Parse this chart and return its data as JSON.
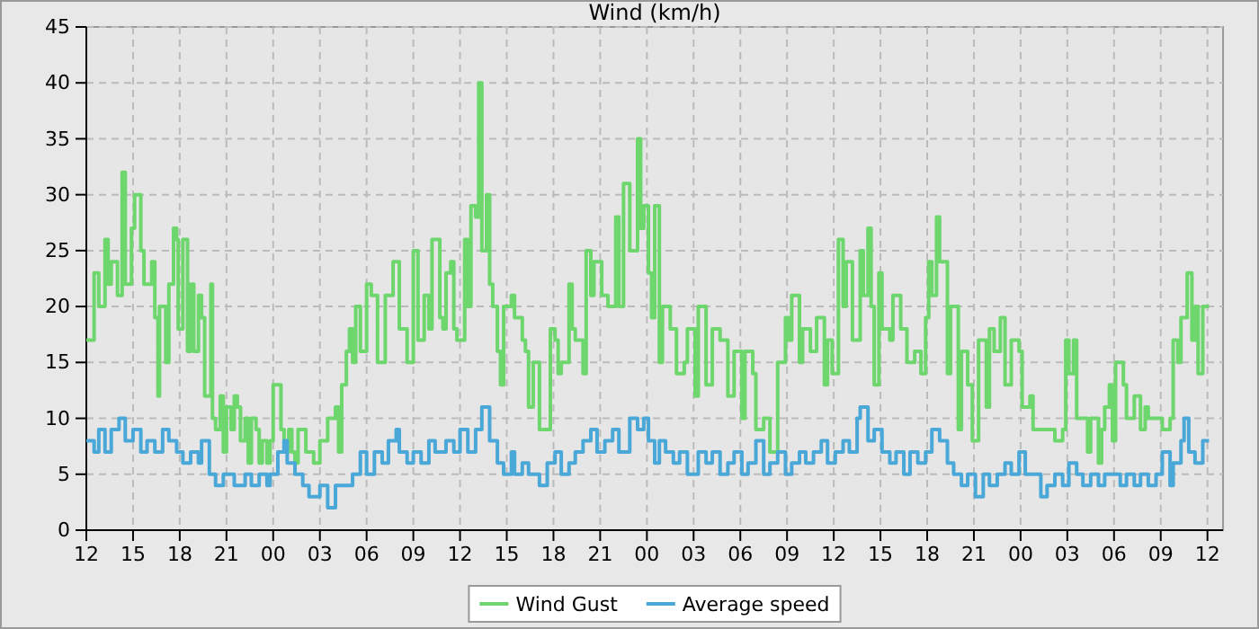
{
  "chart_data": {
    "type": "step",
    "title": "Wind (km/h)",
    "legend": "bottom",
    "grid": true,
    "xlim": [
      12,
      85
    ],
    "ylim": [
      0,
      45
    ],
    "yticks": [
      0,
      5,
      10,
      15,
      20,
      25,
      30,
      35,
      40,
      45
    ],
    "xticks": [
      {
        "value": 12,
        "label": "12"
      },
      {
        "value": 15,
        "label": "15"
      },
      {
        "value": 18,
        "label": "18"
      },
      {
        "value": 21,
        "label": "21"
      },
      {
        "value": 24,
        "label": "00"
      },
      {
        "value": 27,
        "label": "03"
      },
      {
        "value": 30,
        "label": "06"
      },
      {
        "value": 33,
        "label": "09"
      },
      {
        "value": 36,
        "label": "12"
      },
      {
        "value": 39,
        "label": "15"
      },
      {
        "value": 42,
        "label": "18"
      },
      {
        "value": 45,
        "label": "21"
      },
      {
        "value": 48,
        "label": "00"
      },
      {
        "value": 51,
        "label": "03"
      },
      {
        "value": 54,
        "label": "06"
      },
      {
        "value": 57,
        "label": "09"
      },
      {
        "value": 60,
        "label": "12"
      },
      {
        "value": 63,
        "label": "15"
      },
      {
        "value": 66,
        "label": "18"
      },
      {
        "value": 69,
        "label": "21"
      },
      {
        "value": 72,
        "label": "00"
      },
      {
        "value": 75,
        "label": "03"
      },
      {
        "value": 78,
        "label": "06"
      },
      {
        "value": 81,
        "label": "09"
      },
      {
        "value": 84,
        "label": "12"
      }
    ],
    "series": [
      {
        "name": "Wind Gust",
        "color": "#6dd66d",
        "x": [
          12.0,
          12.5,
          12.8,
          13.2,
          13.4,
          13.6,
          14.0,
          14.3,
          14.5,
          14.9,
          15.1,
          15.5,
          15.7,
          16.2,
          16.4,
          16.6,
          16.7,
          17.1,
          17.3,
          17.6,
          17.8,
          17.9,
          18.2,
          18.5,
          18.7,
          18.9,
          19.2,
          19.4,
          19.6,
          20.0,
          20.1,
          20.3,
          20.6,
          20.8,
          21.0,
          21.3,
          21.5,
          21.7,
          21.9,
          22.2,
          22.4,
          22.6,
          22.9,
          23.1,
          23.3,
          23.6,
          23.8,
          24.0,
          24.3,
          24.5,
          24.7,
          25.0,
          25.2,
          25.4,
          25.6,
          26.1,
          26.6,
          27.0,
          27.5,
          28.0,
          28.2,
          28.4,
          28.7,
          28.9,
          29.1,
          29.3,
          29.6,
          30.0,
          30.3,
          30.7,
          31.2,
          31.7,
          32.1,
          32.6,
          33.0,
          33.3,
          33.7,
          34.0,
          34.2,
          34.7,
          34.9,
          35.1,
          35.4,
          35.6,
          35.8,
          36.3,
          36.5,
          36.7,
          37.0,
          37.2,
          37.4,
          37.7,
          37.9,
          38.1,
          38.4,
          38.6,
          38.8,
          39.3,
          39.5,
          40.0,
          40.2,
          40.4,
          40.7,
          41.1,
          41.4,
          41.8,
          42.1,
          42.3,
          42.5,
          43.0,
          43.2,
          43.4,
          43.9,
          44.1,
          44.4,
          44.6,
          45.1,
          45.5,
          46.0,
          46.2,
          46.5,
          46.9,
          47.4,
          47.6,
          47.8,
          48.1,
          48.3,
          48.5,
          48.8,
          49.0,
          49.5,
          49.9,
          50.4,
          50.6,
          51.1,
          51.3,
          51.8,
          52.2,
          52.7,
          53.2,
          53.6,
          54.1,
          54.3,
          54.8,
          55.0,
          55.5,
          55.9,
          56.4,
          56.9,
          57.1,
          57.3,
          57.8,
          58.0,
          58.5,
          58.9,
          59.4,
          59.6,
          59.9,
          60.3,
          60.6,
          60.8,
          61.2,
          61.7,
          61.9,
          62.2,
          62.4,
          62.6,
          62.9,
          63.1,
          63.6,
          63.8,
          64.3,
          64.7,
          65.2,
          65.6,
          65.9,
          66.1,
          66.3,
          66.6,
          66.8,
          67.3,
          67.5,
          68.0,
          68.2,
          68.6,
          68.9,
          69.3,
          69.8,
          70.0,
          70.3,
          70.7,
          71.0,
          71.4,
          71.9,
          72.1,
          72.6,
          72.8,
          73.3,
          73.7,
          74.2,
          74.7,
          74.9,
          75.1,
          75.4,
          75.6,
          76.0,
          76.3,
          76.5,
          77.0,
          77.2,
          77.4,
          77.7,
          77.9,
          78.1,
          78.6,
          78.8,
          79.3,
          79.7,
          80.0,
          80.2,
          80.7,
          81.1,
          81.6,
          81.8,
          82.1,
          82.3,
          82.7,
          83.0,
          83.2,
          83.4,
          83.7,
          84.1
        ],
        "values": [
          17,
          23,
          20,
          26,
          22,
          24,
          21,
          32,
          22,
          27,
          30,
          25,
          22,
          24,
          19,
          12,
          20,
          15,
          22,
          27,
          26,
          18,
          26,
          16,
          22,
          16,
          21,
          19,
          12,
          22,
          10,
          9,
          12,
          7,
          11,
          9,
          12,
          11,
          8,
          10,
          6,
          10,
          9,
          6,
          8,
          6,
          8,
          13,
          13,
          9,
          7,
          9,
          7,
          6,
          9,
          7,
          6,
          8,
          10,
          11,
          7,
          13,
          16,
          18,
          15,
          20,
          16,
          22,
          21,
          15,
          21,
          24,
          18,
          15,
          25,
          17,
          21,
          18,
          26,
          19,
          18,
          23,
          24,
          18,
          17,
          26,
          20,
          29,
          28,
          40,
          25,
          30,
          22,
          20,
          16,
          13,
          20,
          21,
          19,
          17,
          16,
          11,
          15,
          9,
          9,
          18,
          17,
          14,
          15,
          22,
          18,
          17,
          14,
          25,
          21,
          24,
          21,
          20,
          28,
          20,
          31,
          25,
          35,
          27,
          29,
          23,
          19,
          29,
          15,
          20,
          18,
          14,
          15,
          18,
          12,
          20,
          13,
          18,
          17,
          12,
          16,
          10,
          16,
          14,
          9,
          10,
          7,
          15,
          19,
          17,
          21,
          15,
          18,
          16,
          19,
          13,
          17,
          14,
          26,
          20,
          24,
          17,
          25,
          21,
          27,
          20,
          13,
          23,
          18,
          17,
          21,
          18,
          15,
          16,
          14,
          19,
          24,
          21,
          28,
          24,
          14,
          20,
          9,
          16,
          13,
          8,
          17,
          11,
          18,
          16,
          19,
          13,
          17,
          16,
          11,
          12,
          9,
          9,
          9,
          8,
          9,
          17,
          14,
          17,
          10,
          10,
          7,
          10,
          6,
          9,
          11,
          13,
          8,
          15,
          13,
          10,
          12,
          9,
          11,
          10,
          10,
          9,
          10,
          17,
          15,
          19,
          23,
          17,
          20,
          14,
          20,
          20
        ]
      },
      {
        "name": "Average speed",
        "color": "#4aa8d8",
        "x": [
          12.0,
          12.5,
          12.8,
          13.2,
          13.6,
          14.1,
          14.5,
          15.0,
          15.5,
          15.9,
          16.4,
          16.9,
          17.3,
          17.8,
          18.2,
          18.7,
          19.2,
          19.4,
          19.9,
          20.3,
          20.8,
          21.5,
          22.2,
          22.6,
          23.1,
          23.6,
          23.8,
          24.3,
          24.7,
          24.9,
          25.4,
          25.9,
          26.3,
          27.0,
          27.5,
          28.0,
          28.4,
          29.1,
          29.6,
          30.0,
          30.5,
          31.0,
          31.4,
          31.9,
          32.1,
          32.6,
          33.0,
          33.5,
          34.0,
          34.4,
          35.1,
          35.6,
          36.0,
          36.5,
          37.0,
          37.4,
          37.9,
          38.4,
          38.8,
          39.3,
          39.5,
          40.0,
          40.4,
          41.1,
          41.6,
          42.1,
          42.5,
          43.0,
          43.4,
          43.9,
          44.4,
          44.8,
          45.3,
          45.8,
          46.2,
          46.9,
          47.4,
          47.8,
          48.1,
          48.5,
          48.8,
          49.2,
          49.7,
          50.1,
          50.6,
          51.3,
          51.8,
          52.2,
          52.7,
          53.2,
          53.6,
          54.1,
          54.5,
          55.0,
          55.5,
          55.9,
          56.4,
          56.9,
          57.3,
          57.8,
          58.2,
          58.7,
          59.2,
          59.6,
          60.1,
          60.6,
          61.0,
          61.5,
          61.7,
          62.2,
          62.6,
          63.1,
          63.6,
          64.0,
          64.5,
          64.9,
          65.4,
          65.9,
          66.3,
          66.8,
          67.3,
          67.7,
          68.2,
          68.6,
          69.1,
          69.6,
          70.0,
          70.5,
          71.0,
          71.4,
          71.9,
          72.3,
          72.8,
          73.3,
          73.7,
          74.2,
          74.7,
          75.1,
          75.6,
          76.0,
          76.5,
          77.0,
          77.4,
          77.9,
          78.4,
          78.8,
          79.3,
          79.7,
          80.2,
          80.7,
          81.1,
          81.6,
          81.8,
          82.3,
          82.5,
          82.8,
          83.2,
          83.7,
          84.1
        ],
        "values": [
          8,
          7,
          9,
          7,
          9,
          10,
          8,
          9,
          7,
          8,
          7,
          9,
          8,
          7,
          6,
          7,
          6,
          8,
          5,
          4,
          5,
          4,
          5,
          4,
          5,
          4,
          5,
          7,
          8,
          6,
          5,
          4,
          3,
          4,
          2,
          4,
          4,
          5,
          7,
          5,
          7,
          6,
          8,
          9,
          7,
          6,
          7,
          6,
          8,
          7,
          8,
          7,
          9,
          7,
          9,
          11,
          8,
          6,
          5,
          7,
          5,
          6,
          5,
          4,
          6,
          7,
          5,
          6,
          7,
          8,
          9,
          7,
          8,
          9,
          7,
          10,
          9,
          10,
          8,
          6,
          8,
          7,
          6,
          7,
          5,
          7,
          6,
          7,
          5,
          6,
          7,
          5,
          6,
          8,
          5,
          6,
          7,
          5,
          6,
          7,
          6,
          7,
          8,
          6,
          7,
          8,
          7,
          10,
          11,
          8,
          9,
          7,
          6,
          7,
          5,
          7,
          6,
          7,
          9,
          8,
          6,
          5,
          4,
          5,
          3,
          5,
          4,
          5,
          6,
          5,
          7,
          5,
          5,
          3,
          4,
          5,
          4,
          6,
          5,
          4,
          5,
          4,
          5,
          5,
          4,
          5,
          4,
          5,
          4,
          5,
          7,
          4,
          6,
          8,
          10,
          7,
          6,
          8,
          8
        ]
      }
    ]
  }
}
